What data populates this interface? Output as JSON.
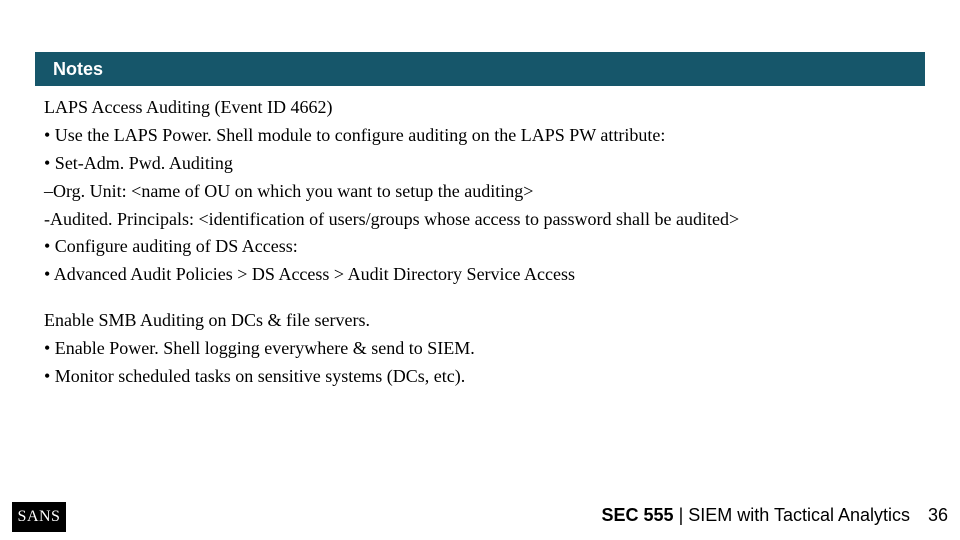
{
  "colors": {
    "header_bg": "#16566a",
    "header_text": "#ffffff",
    "body_text": "#000000",
    "page_bg": "#ffffff",
    "logo_bg": "#000000",
    "logo_text": "#ffffff"
  },
  "header": {
    "title": "Notes"
  },
  "body": {
    "lines": [
      "LAPS Access Auditing (Event ID 4662)",
      "• Use the LAPS Power. Shell module to configure auditing on the LAPS PW attribute:",
      "• Set-Adm. Pwd. Auditing",
      "–Org. Unit: <name of OU on which you want to setup the auditing>",
      "-Audited. Principals: <identification of users/groups whose access to password shall be audited>",
      "• Configure auditing of DS Access:",
      "• Advanced Audit Policies > DS Access > Audit Directory Service Access",
      "",
      "Enable SMB Auditing on DCs & file servers.",
      "• Enable Power. Shell logging everywhere & send to SIEM.",
      "• Monitor scheduled tasks on sensitive systems (DCs, etc)."
    ]
  },
  "footer": {
    "logo_text": "SANS",
    "course_code": "SEC 555",
    "course_sep": " | ",
    "course_title": "SIEM with Tactical Analytics",
    "page_number": "36"
  }
}
